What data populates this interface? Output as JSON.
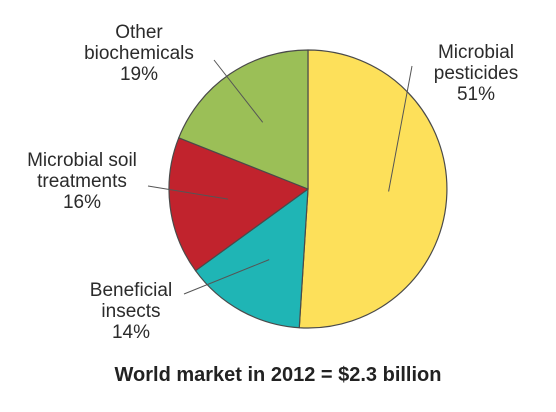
{
  "chart_data": {
    "type": "pie",
    "slices": [
      {
        "name": "Microbial pesticides",
        "label_lines": [
          "Microbial",
          "pesticides"
        ],
        "percent_text": "51%",
        "value": 51,
        "color": "#fde05a"
      },
      {
        "name": "Beneficial insects",
        "label_lines": [
          "Beneficial",
          "insects"
        ],
        "percent_text": "14%",
        "value": 14,
        "color": "#1fb5b5"
      },
      {
        "name": "Microbial soil treatments",
        "label_lines": [
          "Microbial soil",
          "treatments"
        ],
        "percent_text": "16%",
        "value": 16,
        "color": "#c1232d"
      },
      {
        "name": "Other biochemicals",
        "label_lines": [
          "Other",
          "biochemicals"
        ],
        "percent_text": "19%",
        "value": 19,
        "color": "#9bbf57"
      }
    ],
    "caption": "World market in 2012 = $2.3 billion",
    "start_angle_deg": 0,
    "direction": "clockwise"
  }
}
